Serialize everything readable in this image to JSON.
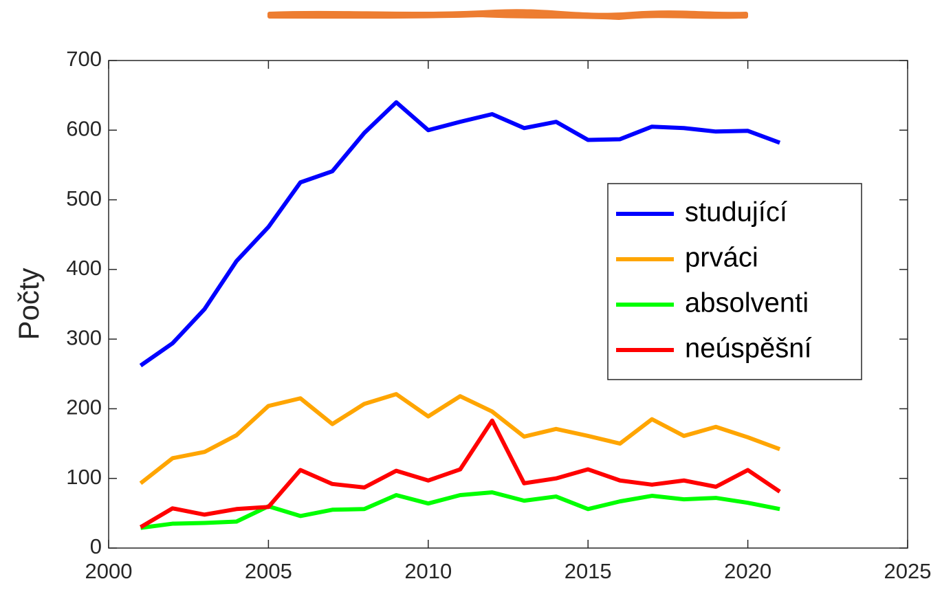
{
  "chart_data": {
    "type": "line",
    "y_label": "Počty",
    "x": [
      2001,
      2002,
      2003,
      2004,
      2005,
      2006,
      2007,
      2008,
      2009,
      2010,
      2011,
      2012,
      2013,
      2014,
      2015,
      2016,
      2017,
      2018,
      2019,
      2020,
      2021
    ],
    "series": [
      {
        "name": "studující",
        "color": "#0000ff",
        "values": [
          262,
          294,
          343,
          412,
          461,
          525,
          541,
          596,
          640,
          600,
          612,
          623,
          603,
          612,
          586,
          587,
          605,
          603,
          598,
          599,
          582
        ]
      },
      {
        "name": "prváci",
        "color": "#ffa500",
        "values": [
          93,
          129,
          138,
          162,
          204,
          215,
          178,
          207,
          221,
          189,
          218,
          196,
          160,
          171,
          161,
          150,
          185,
          161,
          174,
          159,
          142
        ]
      },
      {
        "name": "absolventi",
        "color": "#00ff00",
        "values": [
          29,
          35,
          36,
          38,
          60,
          46,
          55,
          56,
          76,
          64,
          76,
          80,
          68,
          74,
          56,
          67,
          75,
          70,
          72,
          65,
          56
        ]
      },
      {
        "name": "neúspěšní",
        "color": "#ff0000",
        "values": [
          30,
          57,
          48,
          56,
          59,
          112,
          92,
          87,
          111,
          97,
          113,
          183,
          93,
          100,
          113,
          97,
          91,
          97,
          88,
          112,
          81
        ]
      }
    ],
    "xlim": [
      2000,
      2025
    ],
    "xticks": [
      2000,
      2005,
      2010,
      2015,
      2020,
      2025
    ],
    "ylim": [
      0,
      700
    ],
    "yticks": [
      0,
      100,
      200,
      300,
      400,
      500,
      600,
      700
    ],
    "legend": "northeast"
  }
}
